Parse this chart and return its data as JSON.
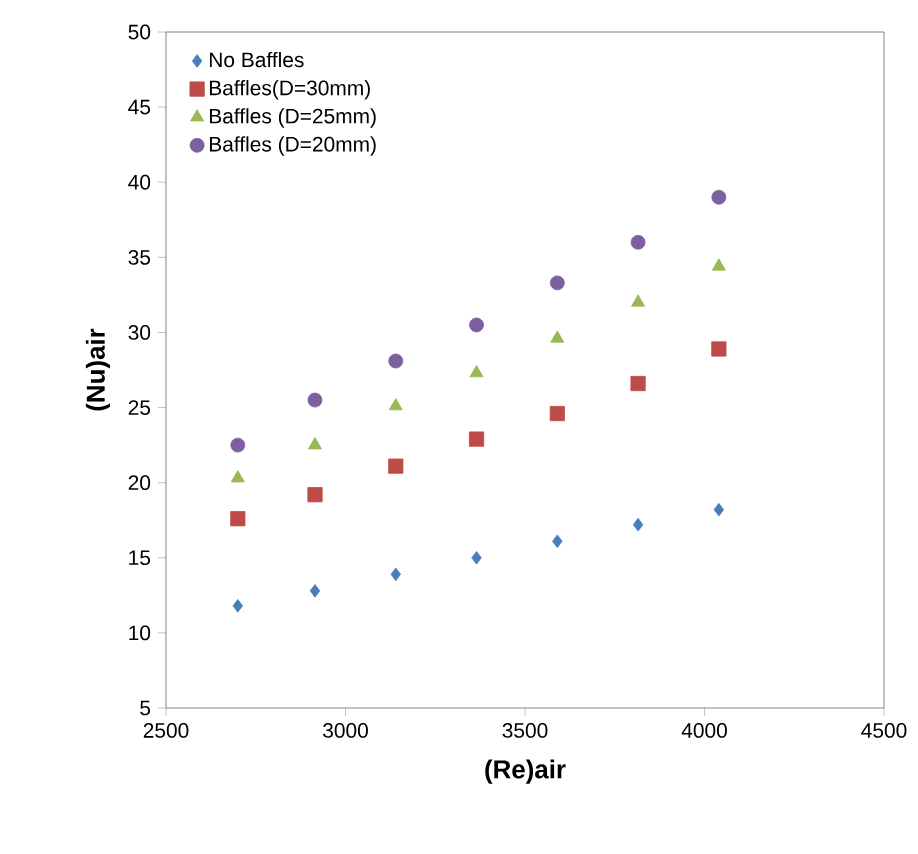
{
  "chart_data": {
    "type": "scatter",
    "xlabel": "(Re)air",
    "ylabel": "(Nu)air",
    "x": [
      2700,
      2915,
      3140,
      3365,
      3590,
      3815,
      4040
    ],
    "series": [
      {
        "name": "No Baffles",
        "color": "#4a7ebb",
        "marker": "diamond",
        "values": [
          11.8,
          12.8,
          13.9,
          15.0,
          16.1,
          17.2,
          18.2
        ]
      },
      {
        "name": "Baffles(D=30mm)",
        "color": "#be4b48",
        "marker": "square",
        "values": [
          17.6,
          19.2,
          21.1,
          22.9,
          24.6,
          26.6,
          28.9
        ]
      },
      {
        "name": "Baffles (D=25mm)",
        "color": "#98b954",
        "marker": "triangle",
        "values": [
          20.3,
          22.5,
          25.1,
          27.3,
          29.6,
          32.0,
          34.4
        ]
      },
      {
        "name": "Baffles (D=20mm)",
        "color": "#7d5fa0",
        "marker": "circle",
        "values": [
          22.5,
          25.5,
          28.1,
          30.5,
          33.3,
          36.0,
          39.0
        ]
      }
    ],
    "xlim": [
      2500,
      4500
    ],
    "xticks": [
      2500,
      3000,
      3500,
      4000,
      4500
    ],
    "ylim": [
      5,
      50
    ],
    "yticks": [
      5,
      10,
      15,
      20,
      25,
      30,
      35,
      40,
      45,
      50
    ],
    "grid": false,
    "legend": "top left"
  }
}
